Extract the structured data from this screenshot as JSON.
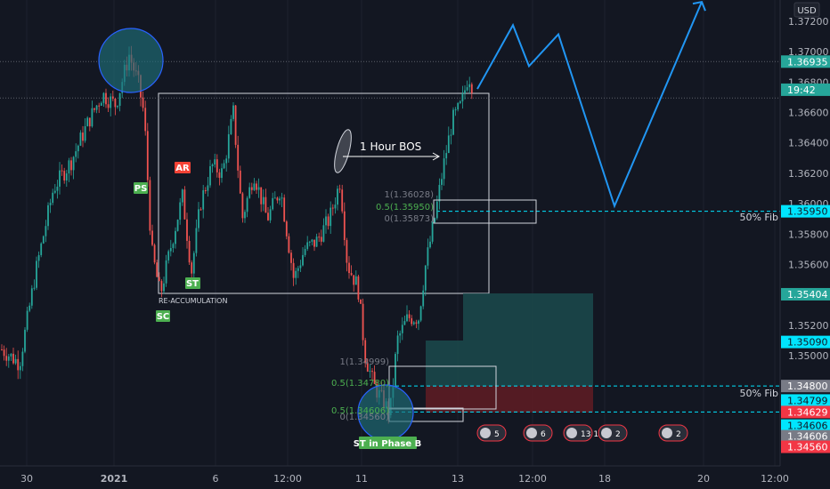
{
  "currency": "USD",
  "colors": {
    "background": "#131722",
    "bull": "#26a69a",
    "bear": "#ef5350",
    "projection": "#2196f3",
    "cyan_tag": "#00e5ff",
    "green_label": "#4caf50",
    "red_label": "#f44336",
    "target_zone": "#1b4a4c",
    "stop_zone": "#5c1c24"
  },
  "chart_data": {
    "type": "candlestick",
    "instrument_currency": "USD",
    "ylim": [
      1.344,
      1.3725
    ],
    "price_ticks": [
      "1.37200",
      "1.37000",
      "1.36800",
      "1.36600",
      "1.36400",
      "1.36200",
      "1.36000",
      "1.35800",
      "1.35600",
      "1.35200",
      "1.35000"
    ],
    "time_ticks": [
      {
        "label": "30",
        "pos": 0
      },
      {
        "label": "2021",
        "pos": 1
      },
      {
        "label": "6",
        "pos": 2
      },
      {
        "label": "12:00",
        "pos": 3
      },
      {
        "label": "11",
        "pos": 4
      },
      {
        "label": "13",
        "pos": 5
      },
      {
        "label": "12:00",
        "pos": 6
      },
      {
        "label": "18",
        "pos": 7
      },
      {
        "label": "20",
        "pos": 8
      },
      {
        "label": "12:00",
        "pos": 9
      }
    ],
    "price_tags": [
      {
        "text": "1.36935",
        "bg": "#26a69a",
        "fg": "#ffffff",
        "price": 1.36935
      },
      {
        "text": "19:42",
        "bg": "#26a69a",
        "fg": "#ffffff",
        "price": 1.3675
      },
      {
        "text": "1.35950",
        "bg": "#00e5ff",
        "fg": "#131722",
        "price": 1.3595
      },
      {
        "text": "1.35404",
        "bg": "#26a69a",
        "fg": "#ffffff",
        "price": 1.35404
      },
      {
        "text": "1.35090",
        "bg": "#00e5ff",
        "fg": "#131722",
        "price": 1.3509
      },
      {
        "text": "1.34800",
        "bg": "#787b86",
        "fg": "#ffffff",
        "price": 1.348
      },
      {
        "text": "1.34799",
        "bg": "#00e5ff",
        "fg": "#131722",
        "price": 1.34705
      },
      {
        "text": "1.34629",
        "bg": "#f23645",
        "fg": "#ffffff",
        "price": 1.34629
      },
      {
        "text": "1.34606",
        "bg": "#00e5ff",
        "fg": "#131722",
        "price": 1.3454
      },
      {
        "text": "1.34606",
        "bg": "#787b86",
        "fg": "#ffffff",
        "price": 1.3447
      },
      {
        "text": "1.34560",
        "bg": "#f23645",
        "fg": "#ffffff",
        "price": 1.344
      }
    ],
    "current_price": 1.36935,
    "wyckoff_labels": [
      {
        "text": "PS",
        "color": "#4caf50"
      },
      {
        "text": "AR",
        "color": "#f44336"
      },
      {
        "text": "ST",
        "color": "#4caf50"
      },
      {
        "text": "SC",
        "color": "#4caf50"
      },
      {
        "text": "ST in Phase B",
        "color": "#4caf50"
      }
    ],
    "annotations": {
      "re_accumulation": "RE-ACCUMULATION",
      "bos": "1 Hour BOS",
      "fib_50_right_top": "50% Fib",
      "fib_50_right_bottom": "50% Fib"
    },
    "fib_upper": [
      {
        "text": "1(1.36028)",
        "price": 1.36028,
        "color": "#787b86"
      },
      {
        "text": "0.5(1.35950)",
        "price": 1.3595,
        "color": "#4caf50"
      },
      {
        "text": "0(1.35873)",
        "price": 1.35873,
        "color": "#787b86"
      }
    ],
    "fib_lower": [
      {
        "text": "1(1.34999)",
        "price": 1.34999,
        "color": "#787b86"
      },
      {
        "text": "0.5(1.34780)",
        "price": 1.3478,
        "color": "#4caf50"
      },
      {
        "text": "0.5(1.34606)",
        "price": 1.34606,
        "color": "#4caf50"
      },
      {
        "text": "0(1.34560)",
        "price": 1.3456,
        "color": "#787b86"
      }
    ],
    "projection_path": [
      1.36755,
      1.37175,
      1.36905,
      1.37115,
      1.35985,
      1.37328
    ],
    "dashed_levels": [
      1.36935,
      1.36695,
      1.3595,
      1.348,
      1.34629
    ],
    "event_badges": [
      "5",
      "6",
      "13",
      "12",
      "2",
      "2"
    ]
  }
}
